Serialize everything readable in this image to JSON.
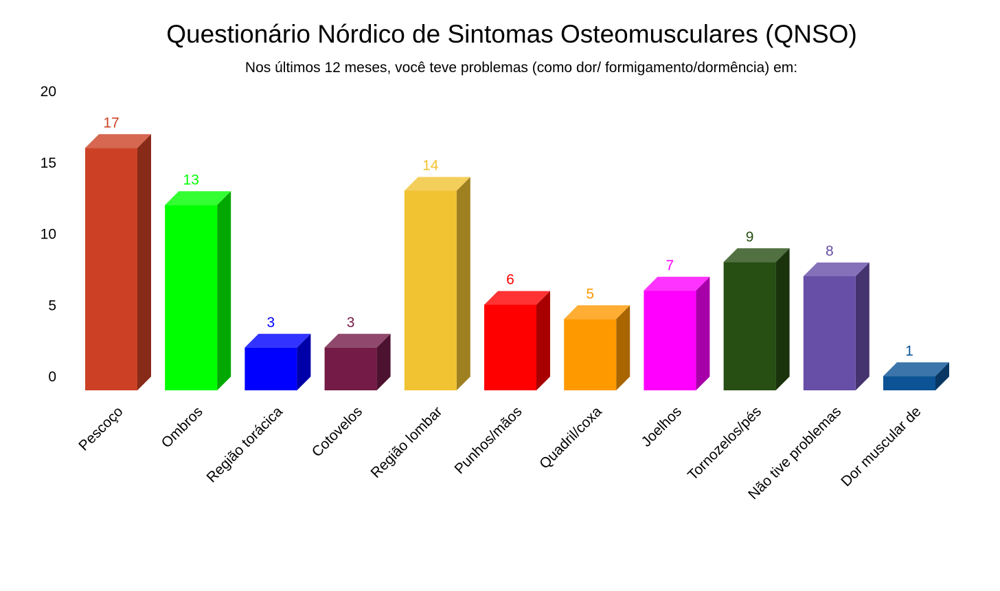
{
  "chart_data": {
    "type": "bar",
    "style": "3d",
    "title": "Questionário Nórdico de Sintomas Osteomusculares (QNSO)",
    "subtitle": "Nos últimos 12 meses, você teve problemas (como dor/ formigamento/dormência) em:",
    "xlabel": "",
    "ylabel": "",
    "ylim": [
      0,
      20
    ],
    "yticks": [
      0,
      5,
      10,
      15,
      20
    ],
    "grid": false,
    "legend": "none",
    "categories": [
      "Pescoço",
      "Ombros",
      "Região torácica",
      "Cotovelos",
      "Região lombar",
      "Punhos/mãos",
      "Quadril/coxa",
      "Joelhos",
      "Tornozelos/pés",
      "Não tive problemas",
      "Dor muscular de"
    ],
    "values": [
      17,
      13,
      3,
      3,
      14,
      6,
      5,
      7,
      9,
      8,
      1
    ],
    "colors": [
      "#cc4125",
      "#00ff00",
      "#0000ff",
      "#741b47",
      "#f1c232",
      "#ff0000",
      "#ff9900",
      "#ff00ff",
      "#274e13",
      "#674ea7",
      "#0b5394"
    ]
  }
}
